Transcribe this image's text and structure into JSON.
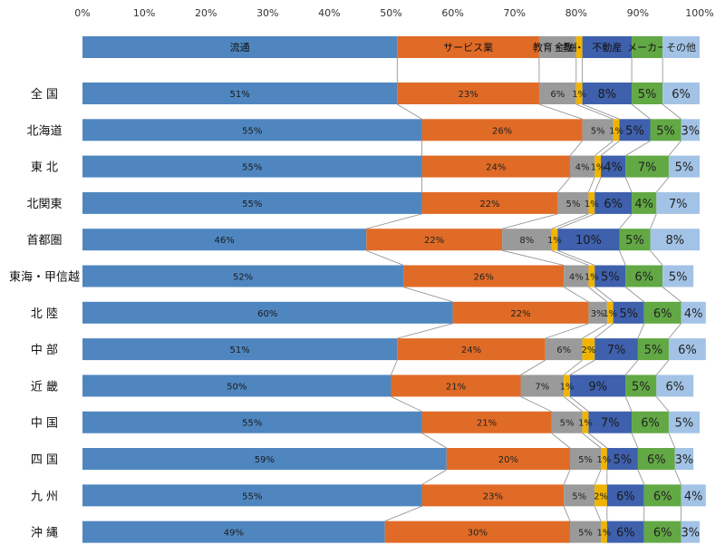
{
  "chart_data": {
    "type": "bar",
    "stacked": true,
    "orientation": "horizontal",
    "percent_stacked": true,
    "xlim": [
      0,
      100
    ],
    "x_ticks": [
      "0%",
      "10%",
      "20%",
      "30%",
      "40%",
      "50%",
      "60%",
      "70%",
      "80%",
      "90%",
      "100%"
    ],
    "categories": [
      "全 国",
      "北海道",
      "東 北",
      "北関東",
      "首都圏",
      "東海・甲信越",
      "北 陸",
      "中 部",
      "近 畿",
      "中 国",
      "四 国",
      "九 州",
      "沖 縄"
    ],
    "series": [
      {
        "name": "流通",
        "color": "#4f86c0",
        "values": [
          51,
          55,
          55,
          55,
          46,
          52,
          60,
          51,
          50,
          55,
          59,
          55,
          49
        ]
      },
      {
        "name": "サービス業",
        "color": "#e06b26",
        "values": [
          23,
          26,
          24,
          22,
          22,
          26,
          22,
          24,
          21,
          21,
          20,
          23,
          30
        ]
      },
      {
        "name": "教育・教養",
        "color": "#9a9a9a",
        "values": [
          6,
          5,
          4,
          5,
          8,
          4,
          3,
          6,
          7,
          5,
          5,
          5,
          5
        ]
      },
      {
        "name": "金融・保険",
        "color": "#f0b400",
        "values": [
          1,
          1,
          1,
          1,
          1,
          1,
          1,
          2,
          1,
          1,
          1,
          2,
          1
        ]
      },
      {
        "name": "不動産",
        "color": "#3e60ad",
        "values": [
          8,
          5,
          4,
          6,
          10,
          5,
          5,
          7,
          9,
          7,
          5,
          6,
          6
        ]
      },
      {
        "name": "メーカー",
        "color": "#62a844",
        "values": [
          5,
          5,
          7,
          4,
          5,
          6,
          6,
          5,
          5,
          6,
          6,
          6,
          6
        ]
      },
      {
        "name": "その他",
        "color": "#a3c3e6",
        "values": [
          6,
          3,
          5,
          7,
          8,
          5,
          4,
          6,
          6,
          5,
          3,
          4,
          3
        ]
      }
    ],
    "legend": "top",
    "series_lines": true,
    "grid": false
  }
}
